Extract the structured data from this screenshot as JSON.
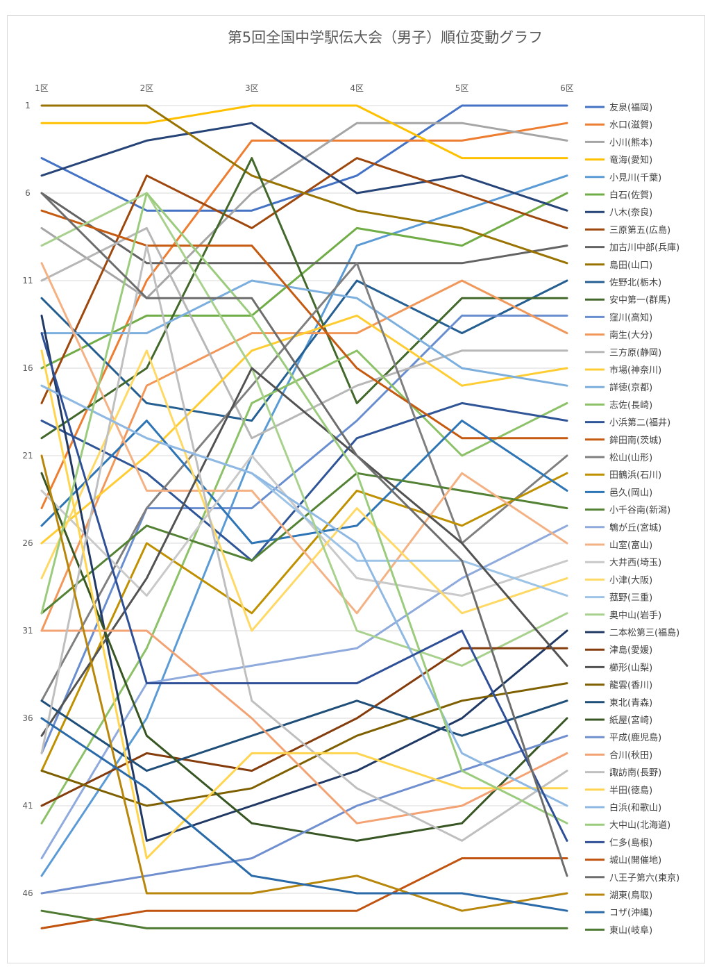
{
  "chart_data": {
    "type": "line",
    "title": "第5回全国中学駅伝大会（男子）順位変動グラフ",
    "x": [
      "1区",
      "2区",
      "3区",
      "4区",
      "5区",
      "6区"
    ],
    "y_ticks": [
      1,
      6,
      11,
      16,
      21,
      26,
      31,
      36,
      41,
      46
    ],
    "ylim": [
      1,
      48
    ],
    "y_reversed": true,
    "grid": true,
    "legend_position": "right",
    "series": [
      {
        "name": "友泉(福岡)",
        "color": "#4472c4",
        "values": [
          4,
          7,
          7,
          5,
          1,
          1
        ]
      },
      {
        "name": "水口(滋賀)",
        "color": "#ed7d31",
        "values": [
          24,
          11,
          3,
          3,
          3,
          2
        ]
      },
      {
        "name": "小川(熊本)",
        "color": "#a5a5a5",
        "values": [
          8,
          12,
          6,
          2,
          2,
          3
        ]
      },
      {
        "name": "竜海(愛知)",
        "color": "#ffc000",
        "values": [
          2,
          2,
          1,
          1,
          4,
          4
        ]
      },
      {
        "name": "小見川(千葉)",
        "color": "#5b9bd5",
        "values": [
          45,
          36,
          21,
          9,
          7,
          5
        ]
      },
      {
        "name": "白石(佐賀)",
        "color": "#70ad47",
        "values": [
          16,
          13,
          13,
          8,
          9,
          6
        ]
      },
      {
        "name": "八木(奈良)",
        "color": "#264478",
        "values": [
          5,
          3,
          2,
          6,
          5,
          7
        ]
      },
      {
        "name": "三原第五(広島)",
        "color": "#9e480e",
        "values": [
          18,
          5,
          8,
          4,
          6,
          8
        ]
      },
      {
        "name": "加古川中部(兵庫)",
        "color": "#636363",
        "values": [
          6,
          10,
          10,
          10,
          10,
          9
        ]
      },
      {
        "name": "島田(山口)",
        "color": "#997300",
        "values": [
          1,
          1,
          5,
          7,
          8,
          10
        ]
      },
      {
        "name": "佐野北(栃木)",
        "color": "#255e91",
        "values": [
          12,
          18,
          19,
          11,
          14,
          11
        ]
      },
      {
        "name": "安中第一(群馬)",
        "color": "#43682b",
        "values": [
          20,
          16,
          4,
          18,
          12,
          12
        ]
      },
      {
        "name": "窪川(高知)",
        "color": "#698ed0",
        "values": [
          38,
          24,
          24,
          19,
          13,
          13
        ]
      },
      {
        "name": "南生(大分)",
        "color": "#f1975a",
        "values": [
          31,
          17,
          14,
          14,
          11,
          14
        ]
      },
      {
        "name": "三方原(静岡)",
        "color": "#b7b7b7",
        "values": [
          11,
          8,
          20,
          17,
          15,
          15
        ]
      },
      {
        "name": "市場(神奈川)",
        "color": "#ffcd33",
        "values": [
          26,
          21,
          15,
          13,
          17,
          16
        ]
      },
      {
        "name": "詳徳(京都)",
        "color": "#7cafdd",
        "values": [
          14,
          14,
          11,
          12,
          16,
          17
        ]
      },
      {
        "name": "志佐(長崎)",
        "color": "#8cc168",
        "values": [
          42,
          32,
          18,
          15,
          21,
          18
        ]
      },
      {
        "name": "小浜第二(福井)",
        "color": "#2f5597",
        "values": [
          19,
          22,
          27,
          20,
          18,
          19
        ]
      },
      {
        "name": "鉾田南(茨城)",
        "color": "#c55a11",
        "values": [
          7,
          9,
          9,
          16,
          20,
          20
        ]
      },
      {
        "name": "松山(山形)",
        "color": "#7f7f7f",
        "values": [
          35,
          24,
          17,
          10,
          26,
          21
        ]
      },
      {
        "name": "田鶴浜(石川)",
        "color": "#bf9000",
        "values": [
          39,
          26,
          30,
          23,
          25,
          22
        ]
      },
      {
        "name": "邑久(岡山)",
        "color": "#2e75b6",
        "values": [
          25,
          19,
          26,
          25,
          19,
          23
        ]
      },
      {
        "name": "小千谷南(新潟)",
        "color": "#548235",
        "values": [
          30,
          25,
          27,
          22,
          23,
          24
        ]
      },
      {
        "name": "鵯が丘(宮城)",
        "color": "#8faadc",
        "values": [
          44,
          34,
          33,
          32,
          28,
          25
        ]
      },
      {
        "name": "山室(富山)",
        "color": "#f4b183",
        "values": [
          10,
          23,
          23,
          30,
          22,
          26
        ]
      },
      {
        "name": "大井西(埼玉)",
        "color": "#c9c9c9",
        "values": [
          23,
          29,
          21,
          28,
          29,
          27
        ]
      },
      {
        "name": "小津(大阪)",
        "color": "#ffd966",
        "values": [
          28,
          15,
          31,
          24,
          30,
          28
        ]
      },
      {
        "name": "菰野(三重)",
        "color": "#9dc3e6",
        "values": [
          17,
          20,
          22,
          27,
          27,
          29
        ]
      },
      {
        "name": "奥中山(岩手)",
        "color": "#a9d18e",
        "values": [
          9,
          6,
          16,
          31,
          33,
          30
        ]
      },
      {
        "name": "二本松第三(福島)",
        "color": "#203864",
        "values": [
          13,
          43,
          41,
          39,
          36,
          31
        ]
      },
      {
        "name": "津島(愛媛)",
        "color": "#843c0c",
        "values": [
          41,
          38,
          39,
          36,
          32,
          32
        ]
      },
      {
        "name": "櫛形(山梨)",
        "color": "#525252",
        "values": [
          37,
          28,
          16,
          21,
          26,
          33
        ]
      },
      {
        "name": "龍雲(香川)",
        "color": "#7f6000",
        "values": [
          39,
          41,
          40,
          37,
          35,
          34
        ]
      },
      {
        "name": "東北(青森)",
        "color": "#1f4e79",
        "values": [
          35,
          39,
          37,
          35,
          37,
          35
        ]
      },
      {
        "name": "紙屋(宮崎)",
        "color": "#375623",
        "values": [
          22,
          37,
          42,
          43,
          42,
          36
        ]
      },
      {
        "name": "平成(鹿児島)",
        "color": "#6f8fcf",
        "values": [
          46,
          45,
          44,
          41,
          39,
          37
        ]
      },
      {
        "name": "合川(秋田)",
        "color": "#f3a273",
        "values": [
          31,
          31,
          36,
          42,
          41,
          38
        ]
      },
      {
        "name": "諏訪南(長野)",
        "color": "#bfbfbf",
        "values": [
          38,
          9,
          35,
          40,
          43,
          39
        ]
      },
      {
        "name": "半田(徳島)",
        "color": "#ffd54f",
        "values": [
          15,
          44,
          38,
          38,
          40,
          40
        ]
      },
      {
        "name": "白浜(和歌山)",
        "color": "#8fb9e3",
        "values": [
          17,
          20,
          22,
          26,
          38,
          41
        ]
      },
      {
        "name": "大中山(北海道)",
        "color": "#9bcb7c",
        "values": [
          30,
          6,
          13,
          22,
          39,
          42
        ]
      },
      {
        "name": "仁多(島根)",
        "color": "#2f4f96",
        "values": [
          14,
          34,
          34,
          34,
          31,
          43
        ]
      },
      {
        "name": "城山(開催地)",
        "color": "#c0530f",
        "values": [
          48,
          47,
          47,
          47,
          44,
          44
        ]
      },
      {
        "name": "八王子第六(東京)",
        "color": "#6d6d6d",
        "values": [
          6,
          12,
          12,
          21,
          27,
          45
        ]
      },
      {
        "name": "湖東(鳥取)",
        "color": "#b8860b",
        "values": [
          21,
          46,
          46,
          45,
          47,
          46
        ]
      },
      {
        "name": "コザ(沖縄)",
        "color": "#2a6aa8",
        "values": [
          36,
          40,
          45,
          46,
          46,
          47
        ]
      },
      {
        "name": "東山(岐阜)",
        "color": "#4e7a32",
        "values": [
          47,
          48,
          48,
          48,
          48,
          48
        ]
      }
    ]
  }
}
